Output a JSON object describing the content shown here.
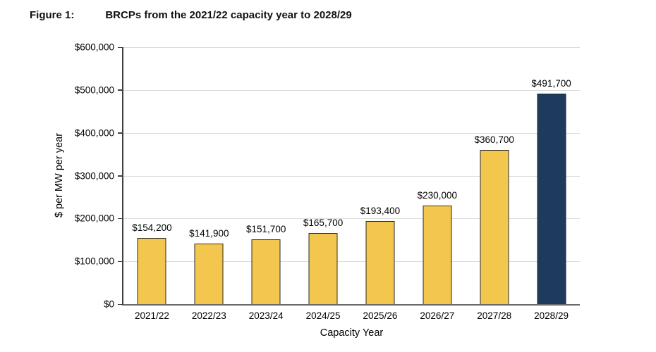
{
  "figure": {
    "label": "Figure 1:",
    "title": "BRCPs from the 2021/22 capacity year to 2028/29"
  },
  "chart_data": {
    "type": "bar",
    "title": "BRCPs from the 2021/22 capacity year to 2028/29",
    "xlabel": "Capacity Year",
    "ylabel": "$ per MW per year",
    "categories": [
      "2021/22",
      "2022/23",
      "2023/24",
      "2024/25",
      "2025/26",
      "2026/27",
      "2027/28",
      "2028/29"
    ],
    "values": [
      154200,
      141900,
      151700,
      165700,
      193400,
      230000,
      360700,
      491700
    ],
    "data_labels": [
      "$154,200",
      "$141,900",
      "$151,700",
      "$165,700",
      "$193,400",
      "$230,000",
      "$360,700",
      "$491,700"
    ],
    "ylim": [
      0,
      600000
    ],
    "yticks": [
      {
        "value": 0,
        "label": "$0"
      },
      {
        "value": 100000,
        "label": "$100,000"
      },
      {
        "value": 200000,
        "label": "$200,000"
      },
      {
        "value": 300000,
        "label": "$300,000"
      },
      {
        "value": 400000,
        "label": "$400,000"
      },
      {
        "value": 500000,
        "label": "$500,000"
      },
      {
        "value": 600000,
        "label": "$600,000"
      }
    ],
    "grid": "horizontal",
    "legend": "none",
    "colors": {
      "bar_fill": "#F3C64E",
      "bar_border": "#2B2B26",
      "highlight_fill": "#1E3A5C",
      "highlight_border": "#15293F",
      "gridline": "#DCDCDC"
    },
    "highlight_index": 7
  }
}
